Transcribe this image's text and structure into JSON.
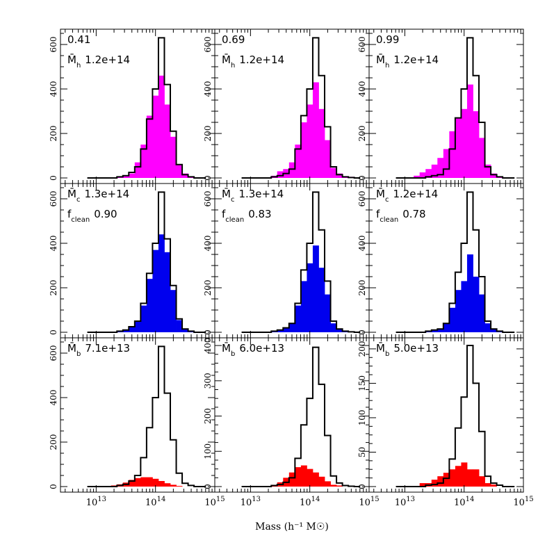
{
  "chart_data": {
    "type": "bar",
    "layout": "3x3 grid of histograms",
    "xlabel": "Mass (h⁻¹ M☉)",
    "x_scale": "log",
    "xlim": [
      2500000000000.0,
      1000000000000000.0
    ],
    "x_tick_labels": [
      {
        "base": "10",
        "exp": "13"
      },
      {
        "base": "10",
        "exp": "14"
      },
      {
        "base": "10",
        "exp": "15"
      }
    ],
    "bin_log_start": 12.85,
    "bin_log_width": 0.1,
    "colors": {
      "magenta": "#ff00ff",
      "blue": "#0000ee",
      "red": "#ff0000",
      "outline": "#000000"
    },
    "panels": [
      {
        "row": 0,
        "col": 0,
        "fill_color": "magenta",
        "ylim": [
          0,
          650
        ],
        "yticks": [
          0,
          200,
          400,
          600
        ],
        "labels": [
          {
            "main": "0.41"
          },
          {
            "main": "M̄",
            "sub": "h",
            "value": "1.2e+14"
          }
        ],
        "outline_values": [
          0,
          0,
          0,
          0,
          0,
          5,
          10,
          25,
          50,
          130,
          265,
          400,
          630,
          420,
          210,
          60,
          15,
          5,
          0,
          0
        ],
        "fill_values": [
          0,
          0,
          0,
          0,
          0,
          5,
          12,
          20,
          70,
          150,
          280,
          370,
          460,
          330,
          185,
          60,
          20,
          5,
          0,
          0
        ]
      },
      {
        "row": 0,
        "col": 1,
        "fill_color": "magenta",
        "ylim": [
          0,
          650
        ],
        "yticks": [
          0,
          200,
          400,
          600
        ],
        "labels": [
          {
            "main": "0.69"
          },
          {
            "main": "M̄",
            "sub": "h",
            "value": "1.2e+14"
          }
        ],
        "outline_values": [
          0,
          0,
          0,
          0,
          0,
          5,
          10,
          20,
          40,
          130,
          280,
          400,
          630,
          460,
          230,
          50,
          15,
          5,
          2,
          0
        ],
        "fill_values": [
          0,
          0,
          0,
          0,
          2,
          10,
          30,
          40,
          70,
          150,
          250,
          330,
          430,
          310,
          170,
          45,
          20,
          5,
          5,
          0
        ]
      },
      {
        "row": 0,
        "col": 2,
        "fill_color": "magenta",
        "ylim": [
          0,
          650
        ],
        "yticks": [
          0,
          200,
          400,
          600
        ],
        "labels": [
          {
            "main": "0.99"
          },
          {
            "main": "M̄",
            "sub": "h",
            "value": "1.2e+14"
          }
        ],
        "outline_values": [
          0,
          0,
          0,
          0,
          0,
          5,
          10,
          15,
          40,
          130,
          270,
          400,
          630,
          460,
          250,
          50,
          15,
          5,
          0,
          0
        ],
        "fill_values": [
          0,
          0,
          0,
          10,
          25,
          40,
          60,
          90,
          130,
          210,
          270,
          310,
          420,
          300,
          180,
          60,
          20,
          5,
          0,
          0
        ]
      },
      {
        "row": 1,
        "col": 0,
        "fill_color": "blue",
        "ylim": [
          0,
          650
        ],
        "yticks": [
          0,
          200,
          400,
          600
        ],
        "labels": [
          {
            "main": "M̄",
            "sub": "c",
            "value": "1.3e+14"
          },
          {
            "main": "f",
            "sub": "clean",
            "value": "0.90"
          }
        ],
        "outline_values": [
          0,
          0,
          0,
          0,
          0,
          5,
          10,
          25,
          50,
          130,
          265,
          400,
          630,
          420,
          210,
          60,
          15,
          5,
          0,
          0
        ],
        "fill_values": [
          0,
          0,
          0,
          0,
          0,
          5,
          10,
          22,
          50,
          120,
          240,
          370,
          440,
          360,
          190,
          55,
          15,
          5,
          0,
          0
        ]
      },
      {
        "row": 1,
        "col": 1,
        "fill_color": "blue",
        "ylim": [
          0,
          650
        ],
        "yticks": [
          0,
          200,
          400,
          600
        ],
        "labels": [
          {
            "main": "M̄",
            "sub": "c",
            "value": "1.3e+14"
          },
          {
            "main": "f",
            "sub": "clean",
            "value": "0.83"
          }
        ],
        "outline_values": [
          0,
          0,
          0,
          0,
          0,
          5,
          10,
          20,
          40,
          130,
          280,
          400,
          630,
          460,
          230,
          50,
          15,
          5,
          2,
          0
        ],
        "fill_values": [
          0,
          0,
          0,
          0,
          0,
          3,
          8,
          18,
          40,
          120,
          230,
          310,
          390,
          290,
          170,
          40,
          15,
          5,
          2,
          0
        ]
      },
      {
        "row": 1,
        "col": 2,
        "fill_color": "blue",
        "ylim": [
          0,
          650
        ],
        "yticks": [
          0,
          200,
          400,
          600
        ],
        "labels": [
          {
            "main": "M̄",
            "sub": "c",
            "value": "1.2e+14"
          },
          {
            "main": "f",
            "sub": "clean",
            "value": "0.78"
          }
        ],
        "outline_values": [
          0,
          0,
          0,
          0,
          0,
          5,
          10,
          15,
          40,
          130,
          270,
          400,
          630,
          460,
          250,
          50,
          15,
          5,
          0,
          0
        ],
        "fill_values": [
          0,
          0,
          0,
          0,
          0,
          5,
          8,
          15,
          40,
          110,
          190,
          230,
          350,
          250,
          170,
          40,
          15,
          5,
          0,
          0
        ]
      },
      {
        "row": 2,
        "col": 0,
        "fill_color": "red",
        "ylim": [
          0,
          650
        ],
        "yticks": [
          0,
          200,
          400,
          600
        ],
        "labels": [
          {
            "main": "M̄",
            "sub": "b",
            "value": "7.1e+13"
          }
        ],
        "outline_values": [
          0,
          0,
          0,
          0,
          0,
          5,
          10,
          25,
          50,
          130,
          265,
          400,
          630,
          420,
          210,
          60,
          15,
          5,
          0,
          0
        ],
        "fill_values": [
          0,
          0,
          0,
          0,
          5,
          10,
          18,
          30,
          38,
          42,
          42,
          35,
          25,
          15,
          8,
          3,
          0,
          0,
          0,
          0
        ]
      },
      {
        "row": 2,
        "col": 1,
        "fill_color": "red",
        "ylim": [
          0,
          410
        ],
        "yticks": [
          0,
          100,
          200,
          300,
          400
        ],
        "labels": [
          {
            "main": "M̄",
            "sub": "b",
            "value": "6.0e+13"
          }
        ],
        "outline_values": [
          0,
          0,
          0,
          0,
          0,
          3,
          6,
          12,
          25,
          80,
          175,
          250,
          395,
          290,
          145,
          30,
          10,
          3,
          1,
          0
        ],
        "fill_values": [
          0,
          0,
          0,
          0,
          0,
          5,
          12,
          25,
          40,
          55,
          60,
          50,
          40,
          28,
          15,
          5,
          3,
          0,
          0,
          0
        ]
      },
      {
        "row": 2,
        "col": 2,
        "fill_color": "red",
        "ylim": [
          0,
          210
        ],
        "yticks": [
          0,
          50,
          100,
          150,
          200
        ],
        "labels": [
          {
            "main": "M̄",
            "sub": "b",
            "value": "5.0e+13"
          }
        ],
        "outline_values": [
          0,
          0,
          0,
          0,
          0,
          2,
          3,
          5,
          12,
          40,
          85,
          130,
          205,
          150,
          80,
          15,
          5,
          2,
          0,
          0
        ],
        "fill_values": [
          0,
          0,
          0,
          0,
          5,
          5,
          10,
          15,
          20,
          25,
          30,
          35,
          25,
          25,
          15,
          5,
          3,
          0,
          0,
          0
        ]
      }
    ]
  }
}
